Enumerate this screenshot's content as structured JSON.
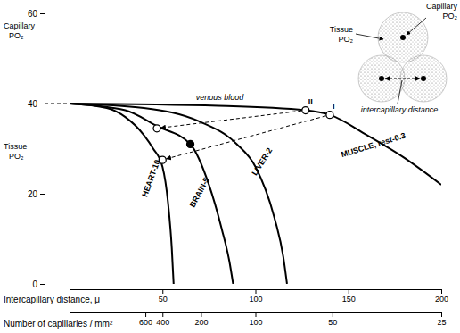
{
  "chart_data": {
    "type": "line",
    "y_label": "Capillary PO₂",
    "y_label_2": "Tissue PO₂",
    "x_label": "Intercapillary distance, μ",
    "x2_label": "Number of capillaries / mm²",
    "xlim": [
      0,
      200
    ],
    "xticks": [
      50,
      100,
      150,
      200
    ],
    "x2ticks": [
      {
        "value": 40.8,
        "label": "600"
      },
      {
        "value": 50,
        "label": "400"
      },
      {
        "value": 70.7,
        "label": "200"
      },
      {
        "value": 100,
        "label": "100"
      },
      {
        "value": 141.4,
        "label": "50"
      },
      {
        "value": 200,
        "label": "25"
      }
    ],
    "ylim": [
      0,
      60
    ],
    "yticks": [
      0,
      20,
      40,
      60
    ],
    "reference": {
      "y": 40,
      "label": "venous blood",
      "line_style": "dashed"
    },
    "series": [
      {
        "name": "HEART-10",
        "color": "#000000",
        "x": [
          0,
          20,
          30,
          40,
          45,
          50,
          53,
          55,
          56
        ],
        "values": [
          40,
          39,
          37,
          33,
          30,
          26,
          18,
          8,
          0
        ]
      },
      {
        "name": "BRAIN-5",
        "color": "#000000",
        "x": [
          0,
          30,
          47,
          65,
          75,
          82,
          86,
          88
        ],
        "values": [
          40,
          38.5,
          35,
          31,
          22,
          12,
          5,
          0
        ]
      },
      {
        "name": "LIVER-2",
        "color": "#000000",
        "x": [
          0,
          40,
          70,
          90,
          100,
          110,
          115,
          117
        ],
        "values": [
          40,
          39,
          36,
          31,
          26,
          15,
          6,
          0
        ]
      },
      {
        "name": "MUSCLE, rest-0.3",
        "color": "#000000",
        "x": [
          0,
          80,
          127,
          140,
          160,
          180,
          200
        ],
        "values": [
          40,
          39.5,
          38.5,
          37.5,
          33,
          28,
          22
        ]
      }
    ],
    "points": [
      {
        "label": "II",
        "x": 127,
        "y": 38.5,
        "marker": "open"
      },
      {
        "label": "I",
        "x": 140,
        "y": 37.5,
        "marker": "open"
      },
      {
        "x": 47,
        "y": 34.5,
        "marker": "open"
      },
      {
        "x": 65,
        "y": 31,
        "marker": "filled"
      },
      {
        "x": 50,
        "y": 27.5,
        "marker": "open"
      }
    ],
    "arrows": [
      {
        "from": 0,
        "to": 2
      },
      {
        "from": 1,
        "to": 4
      }
    ],
    "inset": {
      "tissue_label": "Tissue PO₂",
      "capillary_label": "Capillary PO₂",
      "distance_label": "intercapillary distance"
    }
  }
}
